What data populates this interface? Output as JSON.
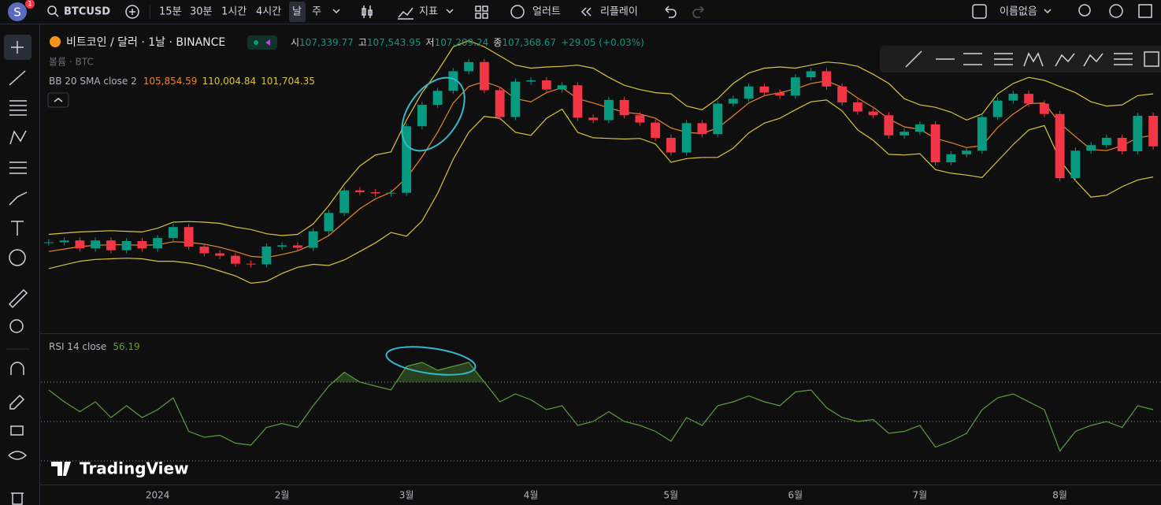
{
  "toolbar": {
    "avatar": "S",
    "badge": "1",
    "symbol": "BTCUSD",
    "intervals": [
      "15분",
      "30분",
      "1시간",
      "4시간",
      "날",
      "주"
    ],
    "indicators": "지표",
    "alert": "얼러트",
    "replay": "리플레이",
    "layout": "이름없음"
  },
  "legend": {
    "title": "비트코인 / 달러 · 1날 · BINANCE",
    "open_label": "시",
    "open": "107,339.77",
    "high_label": "고",
    "high": "107,543.95",
    "low_label": "저",
    "low": "107,209.24",
    "close_label": "종",
    "close": "107,368.67",
    "change": "+29.05 (+0.03%)",
    "volume": "볼륨 · BTC",
    "bb_label": "BB 20 SMA close 2",
    "bb_mid": "105,854.59",
    "bb_upper": "110,004.84",
    "bb_lower": "101,704.35",
    "rsi_label": "RSI 14 close",
    "rsi_value": "56.19"
  },
  "watermark": "TradingView",
  "chart_data": [
    {
      "type": "candlestick",
      "up_color": "#089981",
      "down_color": "#f23645",
      "ylim": [
        29000,
        78000
      ],
      "categories": [
        null,
        null,
        null,
        null,
        null,
        null,
        null,
        "2024",
        null,
        null,
        null,
        null,
        null,
        null,
        null,
        "2월",
        null,
        null,
        null,
        null,
        null,
        null,
        null,
        "3월",
        null,
        null,
        null,
        null,
        null,
        null,
        null,
        "4월",
        null,
        null,
        null,
        null,
        null,
        null,
        null,
        null,
        "5월",
        null,
        null,
        null,
        null,
        null,
        null,
        null,
        "6월",
        null,
        null,
        null,
        null,
        null,
        null,
        null,
        "7월",
        null,
        null,
        null,
        null,
        null,
        null,
        null,
        null,
        "8월",
        null,
        null,
        null,
        null,
        null,
        null
      ],
      "values": [
        43500,
        43800,
        42500,
        43800,
        42200,
        43700,
        42500,
        44200,
        46000,
        42800,
        41700,
        41300,
        40000,
        39900,
        42800,
        43000,
        42600,
        45300,
        48300,
        52000,
        51700,
        51500,
        51600,
        62500,
        66000,
        68300,
        71500,
        73000,
        68400,
        64000,
        69800,
        70000,
        68500,
        69200,
        63900,
        63500,
        66800,
        64300,
        63100,
        60600,
        58200,
        63000,
        61200,
        66200,
        67000,
        69000,
        68000,
        67500,
        70500,
        71500,
        69000,
        66400,
        64900,
        64300,
        61000,
        61600,
        62800,
        56600,
        57900,
        58500,
        64000,
        66700,
        67800,
        66200,
        64500,
        54000,
        58500,
        59400,
        60600,
        58400,
        64200,
        59200
      ],
      "bands": {
        "band_color": "#d8c53a",
        "middle_color": "#e8862a",
        "upper": [
          44800,
          45000,
          45200,
          45300,
          45400,
          45300,
          45200,
          45800,
          46800,
          46900,
          46800,
          46600,
          46000,
          45600,
          44900,
          44600,
          44800,
          46500,
          49500,
          53000,
          56000,
          57800,
          58300,
          63500,
          68000,
          71500,
          75500,
          76500,
          75500,
          74000,
          72500,
          72000,
          72200,
          72300,
          72500,
          72000,
          70500,
          69200,
          68500,
          68000,
          67800,
          65800,
          65200,
          67000,
          69500,
          71200,
          72000,
          72200,
          72000,
          72500,
          73000,
          72800,
          72300,
          71000,
          69500,
          67000,
          66000,
          65600,
          64800,
          63500,
          64500,
          67800,
          69500,
          70500,
          70000,
          69000,
          68000,
          66500,
          65800,
          66000,
          67500,
          67800
        ],
        "middle": [
          42000,
          42400,
          42800,
          43000,
          43100,
          43100,
          43000,
          43100,
          43600,
          43500,
          43200,
          42700,
          42000,
          41200,
          41000,
          41500,
          42100,
          43200,
          44600,
          46800,
          49000,
          50600,
          51700,
          54000,
          57500,
          61500,
          66300,
          69000,
          69800,
          68900,
          67000,
          66500,
          68000,
          68800,
          67000,
          66300,
          65500,
          64800,
          64500,
          63800,
          62200,
          61500,
          61300,
          62200,
          64200,
          66300,
          67500,
          68000,
          68600,
          69500,
          69900,
          68900,
          67100,
          65600,
          63700,
          62400,
          62000,
          60500,
          59800,
          59000,
          59300,
          62300,
          64500,
          66200,
          66300,
          63000,
          60800,
          58700,
          58500,
          59300,
          60600,
          61000
        ],
        "lower": [
          39200,
          39800,
          40400,
          40700,
          40800,
          40900,
          40800,
          40400,
          40400,
          40100,
          39600,
          38800,
          38000,
          36800,
          37100,
          38400,
          39400,
          39900,
          39700,
          40600,
          42000,
          43400,
          45100,
          44500,
          47000,
          51500,
          57100,
          61500,
          64100,
          63800,
          61500,
          61000,
          63800,
          65300,
          61500,
          60600,
          60500,
          60400,
          60500,
          59600,
          56600,
          57200,
          57400,
          57400,
          58900,
          61400,
          63000,
          63800,
          65200,
          66500,
          66800,
          65000,
          61900,
          60200,
          57900,
          57800,
          58000,
          55400,
          54800,
          54500,
          54100,
          56800,
          59500,
          61900,
          62600,
          57000,
          53600,
          50900,
          51200,
          52600,
          53700,
          54200
        ]
      }
    },
    {
      "type": "line",
      "color": "#5c9e3c",
      "ylim": [
        8,
        94
      ],
      "levels": [
        30,
        50,
        70
      ],
      "values": [
        66,
        60,
        55,
        60,
        52,
        58,
        52,
        56,
        62,
        45,
        42,
        43,
        39,
        38,
        47,
        49,
        47,
        58,
        68,
        75,
        70,
        68,
        66,
        78,
        80,
        76,
        78,
        80,
        70,
        60,
        64,
        61,
        56,
        58,
        48,
        50,
        55,
        50,
        48,
        45,
        40,
        52,
        48,
        58,
        60,
        63,
        60,
        58,
        65,
        66,
        57,
        52,
        50,
        51,
        44,
        45,
        48,
        37,
        40,
        44,
        56,
        62,
        64,
        60,
        56,
        35,
        45,
        48,
        50,
        47,
        58,
        56
      ]
    }
  ]
}
